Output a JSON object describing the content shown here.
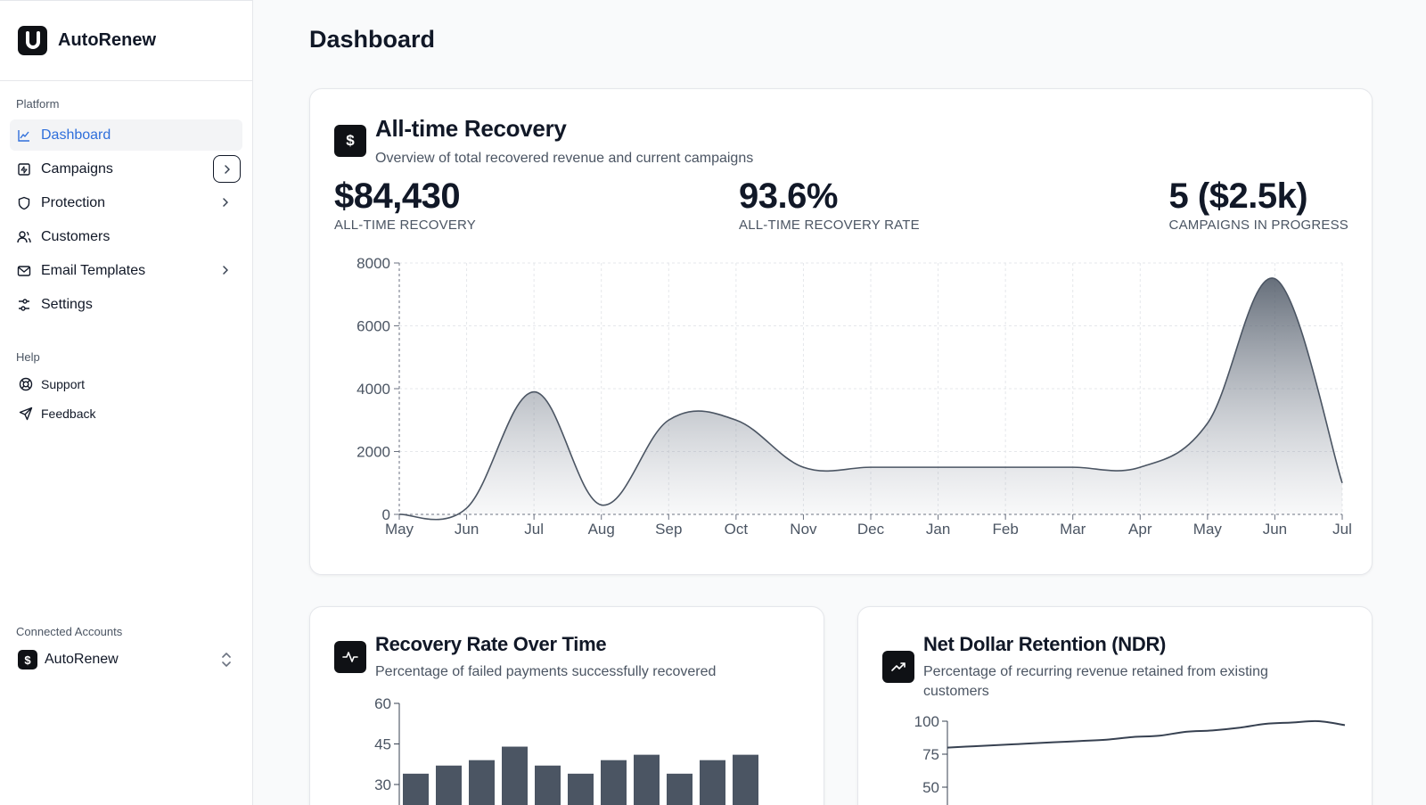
{
  "app": {
    "name": "AutoRenew"
  },
  "sidebar": {
    "platform_label": "Platform",
    "items": [
      {
        "label": "Dashboard",
        "icon": "chart-line-icon",
        "active": true,
        "chevron": "none"
      },
      {
        "label": "Campaigns",
        "icon": "campaign-icon",
        "active": false,
        "chevron": "boxed"
      },
      {
        "label": "Protection",
        "icon": "shield-icon",
        "active": false,
        "chevron": "plain"
      },
      {
        "label": "Customers",
        "icon": "users-icon",
        "active": false,
        "chevron": "none"
      },
      {
        "label": "Email Templates",
        "icon": "mail-icon",
        "active": false,
        "chevron": "plain"
      },
      {
        "label": "Settings",
        "icon": "sliders-icon",
        "active": false,
        "chevron": "none"
      }
    ],
    "help_label": "Help",
    "help_items": [
      {
        "label": "Support",
        "icon": "lifebuoy-icon"
      },
      {
        "label": "Feedback",
        "icon": "send-icon"
      }
    ],
    "accounts_label": "Connected Accounts",
    "account": {
      "name": "AutoRenew"
    }
  },
  "main": {
    "title": "Dashboard",
    "recovery_card": {
      "title": "All-time Recovery",
      "subtitle": "Overview of total recovered revenue and current campaigns",
      "icon_glyph": "$",
      "metrics": [
        {
          "value": "$84,430",
          "label": "ALL-TIME RECOVERY"
        },
        {
          "value": "93.6%",
          "label": "ALL-TIME RECOVERY RATE"
        },
        {
          "value": "5 ($2.5k)",
          "label": "CAMPAIGNS IN PROGRESS"
        }
      ]
    },
    "rate_card": {
      "title": "Recovery Rate Over Time",
      "subtitle": "Percentage of failed payments successfully recovered"
    },
    "ndr_card": {
      "title": "Net Dollar Retention (NDR)",
      "subtitle": "Percentage of recurring revenue retained from existing customers"
    }
  },
  "chart_data": [
    {
      "type": "area",
      "title": "",
      "x": [
        "May",
        "Jun",
        "Jul",
        "Aug",
        "Sep",
        "Oct",
        "Nov",
        "Dec",
        "Jan",
        "Feb",
        "Mar",
        "Apr",
        "May",
        "Jun",
        "Jul"
      ],
      "values": [
        0,
        200,
        3900,
        300,
        3000,
        3000,
        1500,
        1500,
        1500,
        1500,
        1500,
        1500,
        2900,
        7500,
        1000
      ],
      "yticks": [
        0,
        2000,
        4000,
        6000,
        8000
      ],
      "ylim": [
        0,
        8000
      ],
      "grid": true
    },
    {
      "type": "bar",
      "title": "",
      "values": [
        34,
        37,
        39,
        44,
        37,
        34,
        39,
        41,
        34,
        39,
        41
      ],
      "yticks": [
        30,
        45,
        60
      ],
      "ylim": [
        0,
        60
      ]
    },
    {
      "type": "line",
      "title": "",
      "values": [
        80,
        81,
        82,
        83,
        84,
        85,
        86,
        88,
        89,
        92,
        93,
        95,
        98,
        99,
        100,
        97
      ],
      "yticks": [
        50,
        75,
        100
      ],
      "ylim": [
        0,
        100
      ]
    }
  ]
}
